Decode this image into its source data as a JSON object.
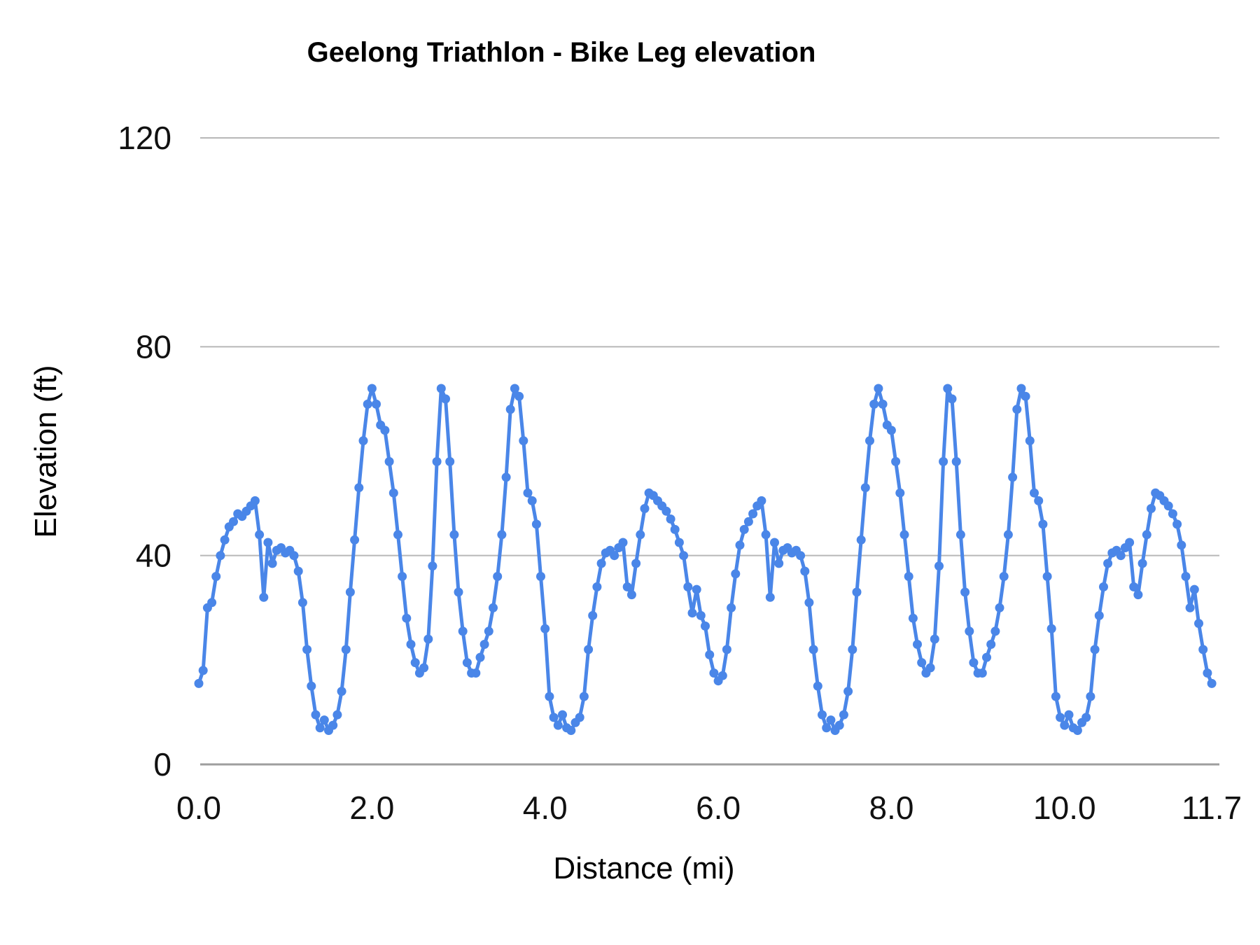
{
  "title": "Geelong Triathlon - Bike Leg  elevation",
  "chart_data": {
    "type": "line",
    "title": "Geelong Triathlon - Bike Leg  elevation",
    "xlabel": "Distance (mi)",
    "ylabel": "Elevation (ft)",
    "x_unit": "mi",
    "y_unit": "ft",
    "xlim": [
      0,
      11.7
    ],
    "ylim": [
      0,
      120
    ],
    "grid": "horizontal-only",
    "legend": "none",
    "marker": "circle",
    "series_color": "#4a86e8",
    "gridline_color": "#b7b7b7",
    "axisline_color": "#9e9e9e",
    "y_ticks": [
      0,
      40,
      80,
      120
    ],
    "x_ticks": [
      {
        "value": 0,
        "label": "0.0"
      },
      {
        "value": 2,
        "label": "2.0"
      },
      {
        "value": 4,
        "label": "4.0"
      },
      {
        "value": 6,
        "label": "6.0"
      },
      {
        "value": 8,
        "label": "8.0"
      },
      {
        "value": 10,
        "label": "10.0"
      },
      {
        "value": 11.7,
        "label": "11.7"
      }
    ],
    "series": [
      {
        "name": "elevation",
        "x_start": 0,
        "x_step": 0.05,
        "y": [
          15.5,
          18,
          30,
          31,
          36,
          40,
          43,
          45.5,
          46.5,
          48,
          47.5,
          48.5,
          49.5,
          50.5,
          44,
          32,
          42.5,
          38.5,
          41,
          41.5,
          40.5,
          41,
          40,
          37,
          31,
          22,
          15,
          9.5,
          7,
          8.5,
          6.5,
          7.5,
          9.5,
          14,
          22,
          33,
          43,
          53,
          62,
          69,
          72,
          69,
          65,
          64,
          58,
          52,
          44,
          36,
          28,
          23,
          19.5,
          17.5,
          18.5,
          24,
          38,
          58,
          72,
          70,
          58,
          44,
          33,
          25.5,
          19.5,
          17.5,
          17.5,
          20.5,
          23,
          25.5,
          30,
          36,
          44,
          55,
          68,
          72,
          70.5,
          62,
          52,
          50.5,
          46,
          36,
          26,
          13,
          9,
          7.5,
          9.5,
          7,
          6.5,
          8,
          9,
          13,
          22,
          28.5,
          34,
          38.5,
          40.5,
          41,
          40,
          41.5,
          42.5,
          34,
          32.5,
          38.5,
          44,
          49,
          52,
          51.5,
          50.5,
          49.5,
          48.5,
          47,
          45,
          42.5,
          40,
          34,
          29,
          33.5,
          28.5,
          26.5,
          21,
          17.5,
          16,
          17,
          22,
          30,
          36.5,
          42,
          45,
          46.5,
          48,
          49.5,
          50.5,
          44,
          32,
          42.5,
          38.5,
          41,
          41.5,
          40.5,
          41,
          40,
          37,
          31,
          22,
          15,
          9.5,
          7,
          8.5,
          6.5,
          7.5,
          9.5,
          14,
          22,
          33,
          43,
          53,
          62,
          69,
          72,
          69,
          65,
          64,
          58,
          52,
          44,
          36,
          28,
          23,
          19.5,
          17.5,
          18.5,
          24,
          38,
          58,
          72,
          70,
          58,
          44,
          33,
          25.5,
          19.5,
          17.5,
          17.5,
          20.5,
          23,
          25.5,
          30,
          36,
          44,
          55,
          68,
          72,
          70.5,
          62,
          52,
          50.5,
          46,
          36,
          26,
          13,
          9,
          7.5,
          9.5,
          7,
          6.5,
          8,
          9,
          13,
          22,
          28.5,
          34,
          38.5,
          40.5,
          41,
          40,
          41.5,
          42.5,
          34,
          32.5,
          38.5,
          44,
          49,
          52,
          51.5,
          50.5,
          49.5,
          48,
          46,
          42,
          36,
          30,
          33.5,
          27,
          22,
          17.5,
          15.5
        ]
      }
    ]
  }
}
